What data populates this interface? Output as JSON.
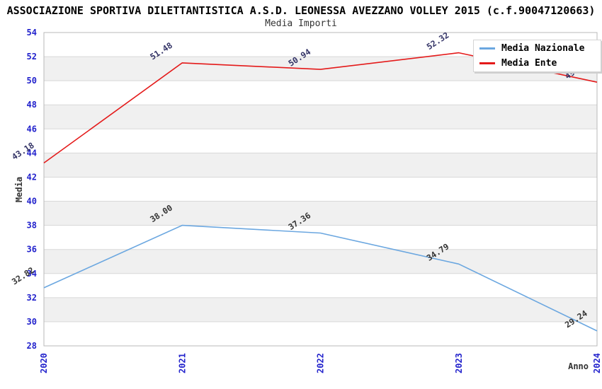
{
  "header": {
    "title": "ASSOCIAZIONE SPORTIVA DILETTANTISTICA A.S.D. LEONESSA AVEZZANO VOLLEY 2015 (c.f.90047120663)",
    "subtitle": "Media Importi"
  },
  "legend": {
    "items": [
      {
        "label": "Media Nazionale",
        "color": "#6BA7E0"
      },
      {
        "label": "Media Ente",
        "color": "#E41A1A"
      }
    ]
  },
  "chart_data": {
    "type": "line",
    "title": "Media Importi",
    "xlabel": "Anno",
    "ylabel": "Media",
    "x": [
      "2020",
      "2021",
      "2022",
      "2023",
      "2024"
    ],
    "series": [
      {
        "name": "Media Nazionale",
        "values": [
          32.82,
          38.0,
          37.36,
          34.79,
          29.24
        ],
        "color": "#6BA7E0",
        "label_color": "#333333"
      },
      {
        "name": "Media Ente",
        "values": [
          43.18,
          51.48,
          50.94,
          52.32,
          49.88
        ],
        "color": "#E41A1A",
        "label_color": "#333366"
      }
    ],
    "ylim": [
      28,
      54
    ],
    "ytick_step": 2,
    "yticks": [
      28,
      30,
      32,
      34,
      36,
      38,
      40,
      42,
      44,
      46,
      48,
      50,
      52,
      54
    ],
    "grid": true,
    "legend_position": "top-right",
    "axis_tick_color": "#2222CC",
    "band_colors": [
      "#ffffff",
      "#f0f0f0"
    ],
    "grid_color": "#d8d8d8",
    "border_color": "#b8b8b8",
    "axis_title_color": "#333333"
  }
}
